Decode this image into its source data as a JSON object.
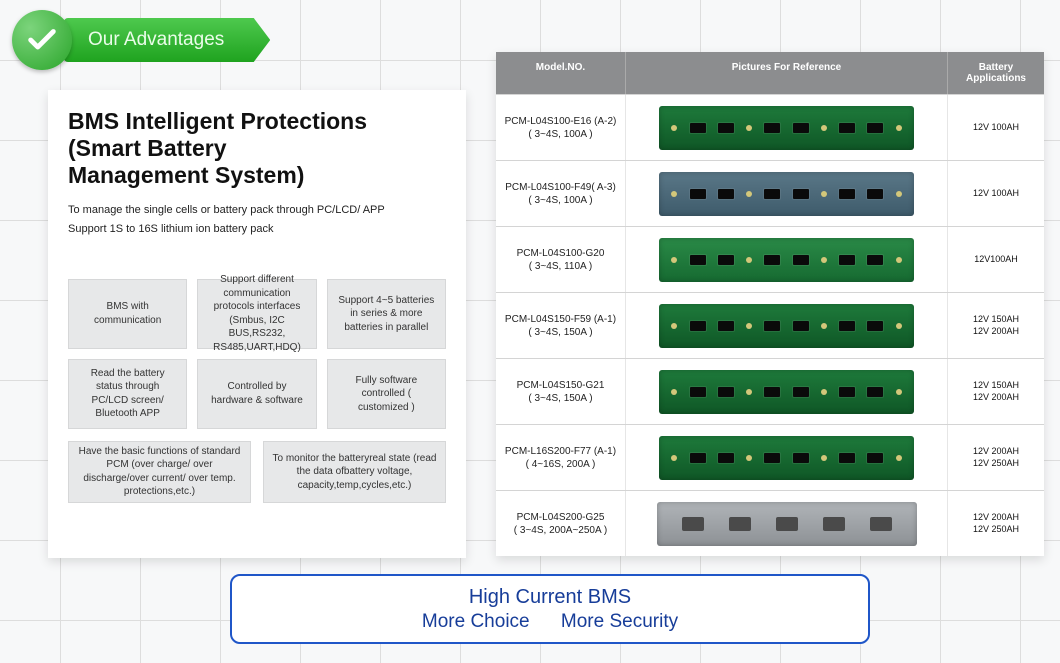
{
  "badge": {
    "label": "Our Advantages"
  },
  "left": {
    "title_l1": "BMS Intelligent Protections",
    "title_l2": "(Smart Battery",
    "title_l3": "Management System)",
    "desc_l1": "To manage the single cells or battery pack through PC/LCD/ APP",
    "desc_l2": "Support 1S to 16S lithium ion battery pack",
    "cells": [
      "BMS with communication",
      "Support different communication protocols interfaces (Smbus, I2C BUS,RS232, RS485,UART,HDQ)",
      "Support 4~5 batteries in series & more batteries in parallel",
      "Read the battery status through PC/LCD screen/ Bluetooth APP",
      "Controlled by hardware & software",
      "Fully software controlled ( customized )"
    ],
    "wide": [
      "Have the basic functions of standard PCM (over charge/ over discharge/over current/ over temp. protections,etc.)",
      "To monitor the batteryreal state (read the data ofbattery voltage, capacity,temp,cycles,etc.)"
    ]
  },
  "table": {
    "head": {
      "model": "Model.NO.",
      "pic": "Pictures For Reference",
      "app": "Battery Applications"
    },
    "rows": [
      {
        "model_l1": "PCM-L04S100-E16 (A-2)",
        "model_l2": "( 3~4S, 100A )",
        "pcb": "green",
        "app": [
          "12V 100AH"
        ]
      },
      {
        "model_l1": "PCM-L04S100-F49( A-3)",
        "model_l2": "( 3~4S, 100A )",
        "pcb": "blue",
        "app": [
          "12V 100AH"
        ]
      },
      {
        "model_l1": "PCM-L04S100-G20",
        "model_l2": "( 3~4S, 110A )",
        "pcb": "green2",
        "app": [
          "12V100AH"
        ]
      },
      {
        "model_l1": "PCM-L04S150-F59 (A-1)",
        "model_l2": "( 3~4S, 150A )",
        "pcb": "green",
        "app": [
          "12V 150AH",
          "12V 200AH"
        ]
      },
      {
        "model_l1": "PCM-L04S150-G21",
        "model_l2": "( 3~4S, 150A )",
        "pcb": "green",
        "app": [
          "12V 150AH",
          "12V 200AH"
        ]
      },
      {
        "model_l1": "PCM-L16S200-F77 (A-1)",
        "model_l2": "( 4~16S, 200A )",
        "pcb": "green",
        "app": [
          "12V 200AH",
          "12V 250AH"
        ]
      },
      {
        "model_l1": "PCM-L04S200-G25",
        "model_l2": "( 3~4S, 200A~250A )",
        "pcb": "grey",
        "app": [
          "12V 200AH",
          "12V 250AH"
        ]
      }
    ]
  },
  "bottom": {
    "l1": "High Current BMS",
    "l2a": "More Choice",
    "l2b": "More Security"
  },
  "colors": {
    "accent_green": "#2aa52a",
    "accent_blue": "#1f56c8"
  }
}
